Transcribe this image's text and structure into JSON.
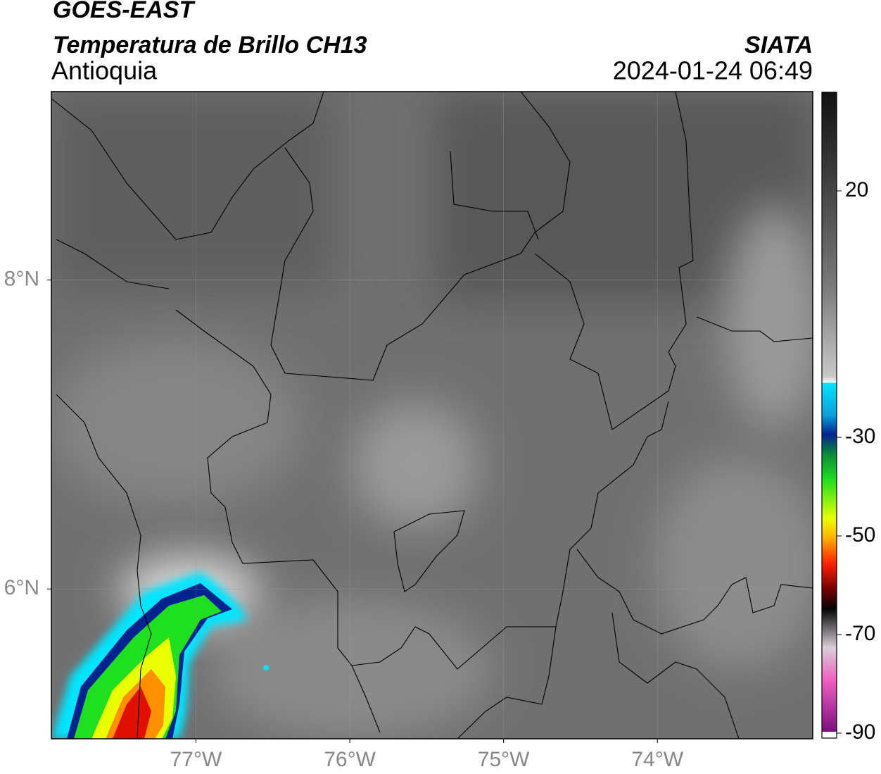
{
  "header": {
    "title": "GOES-EAST",
    "subtitle": "Temperatura de Brillo CH13",
    "region": "Antioquia",
    "source": "SIATA",
    "datetime": "2024-01-24 06:49"
  },
  "map": {
    "lonlim": [
      -77.94,
      -72.99
    ],
    "latlim": [
      5.03,
      9.22
    ],
    "grid": true,
    "lon_ticks": [
      {
        "value": -77,
        "label": "77°W"
      },
      {
        "value": -76,
        "label": "76°W"
      },
      {
        "value": -75,
        "label": "75°W"
      },
      {
        "value": -74,
        "label": "74°W"
      }
    ],
    "lat_ticks": [
      {
        "value": 8,
        "label": "8°N"
      },
      {
        "value": 6,
        "label": "6°N"
      }
    ]
  },
  "colorbar": {
    "lim": [
      -91,
      40
    ],
    "ticks": [
      20,
      -30,
      -50,
      -70,
      -90
    ]
  }
}
